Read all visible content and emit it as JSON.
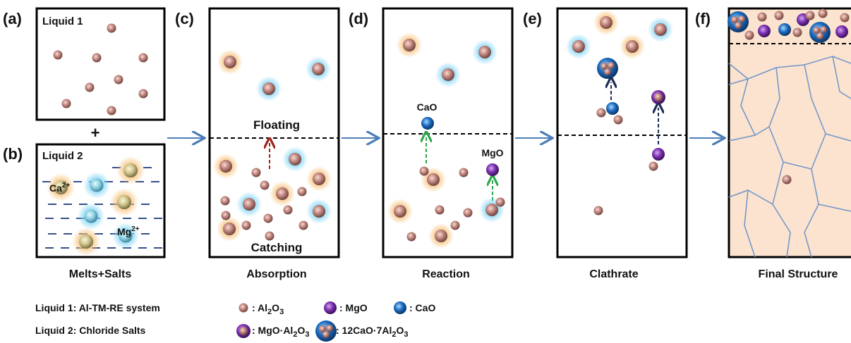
{
  "panel_labels": [
    "(a)",
    "(b)",
    "(c)",
    "(d)",
    "(e)",
    "(f)"
  ],
  "liquid1_label": "Liquid 1",
  "plus": "+",
  "liquid2_label": "Liquid 2",
  "ions": [
    {
      "base": "Ca",
      "sup": "2+"
    },
    {
      "base": "Mg",
      "sup": "2+"
    }
  ],
  "absorption_text": {
    "floating": "Floating",
    "catching": "Catching"
  },
  "reaction_labels": [
    "CaO",
    "MgO"
  ],
  "captions": [
    "Melts+Salts",
    "Absorption",
    "Reaction",
    "Clathrate",
    "Final Structure"
  ],
  "legend": {
    "liquids": [
      "Liquid 1: Al-TM-RE system",
      "Liquid 2:  Chloride Salts"
    ],
    "items": [
      {
        "parts": [
          {
            "text": ": Al"
          },
          {
            "sub": "2"
          },
          {
            "text": "O"
          },
          {
            "sub": "3"
          }
        ]
      },
      {
        "parts": [
          {
            "text": ": MgO"
          }
        ]
      },
      {
        "parts": [
          {
            "text": ": CaO"
          }
        ]
      },
      {
        "parts": [
          {
            "text": ": MgO·Al"
          },
          {
            "sub": "2"
          },
          {
            "text": "O"
          },
          {
            "sub": "3"
          }
        ]
      },
      {
        "parts": [
          {
            "text": ": 12CaO·7Al"
          },
          {
            "sub": "2"
          },
          {
            "text": "O"
          },
          {
            "sub": "3"
          }
        ]
      }
    ]
  }
}
